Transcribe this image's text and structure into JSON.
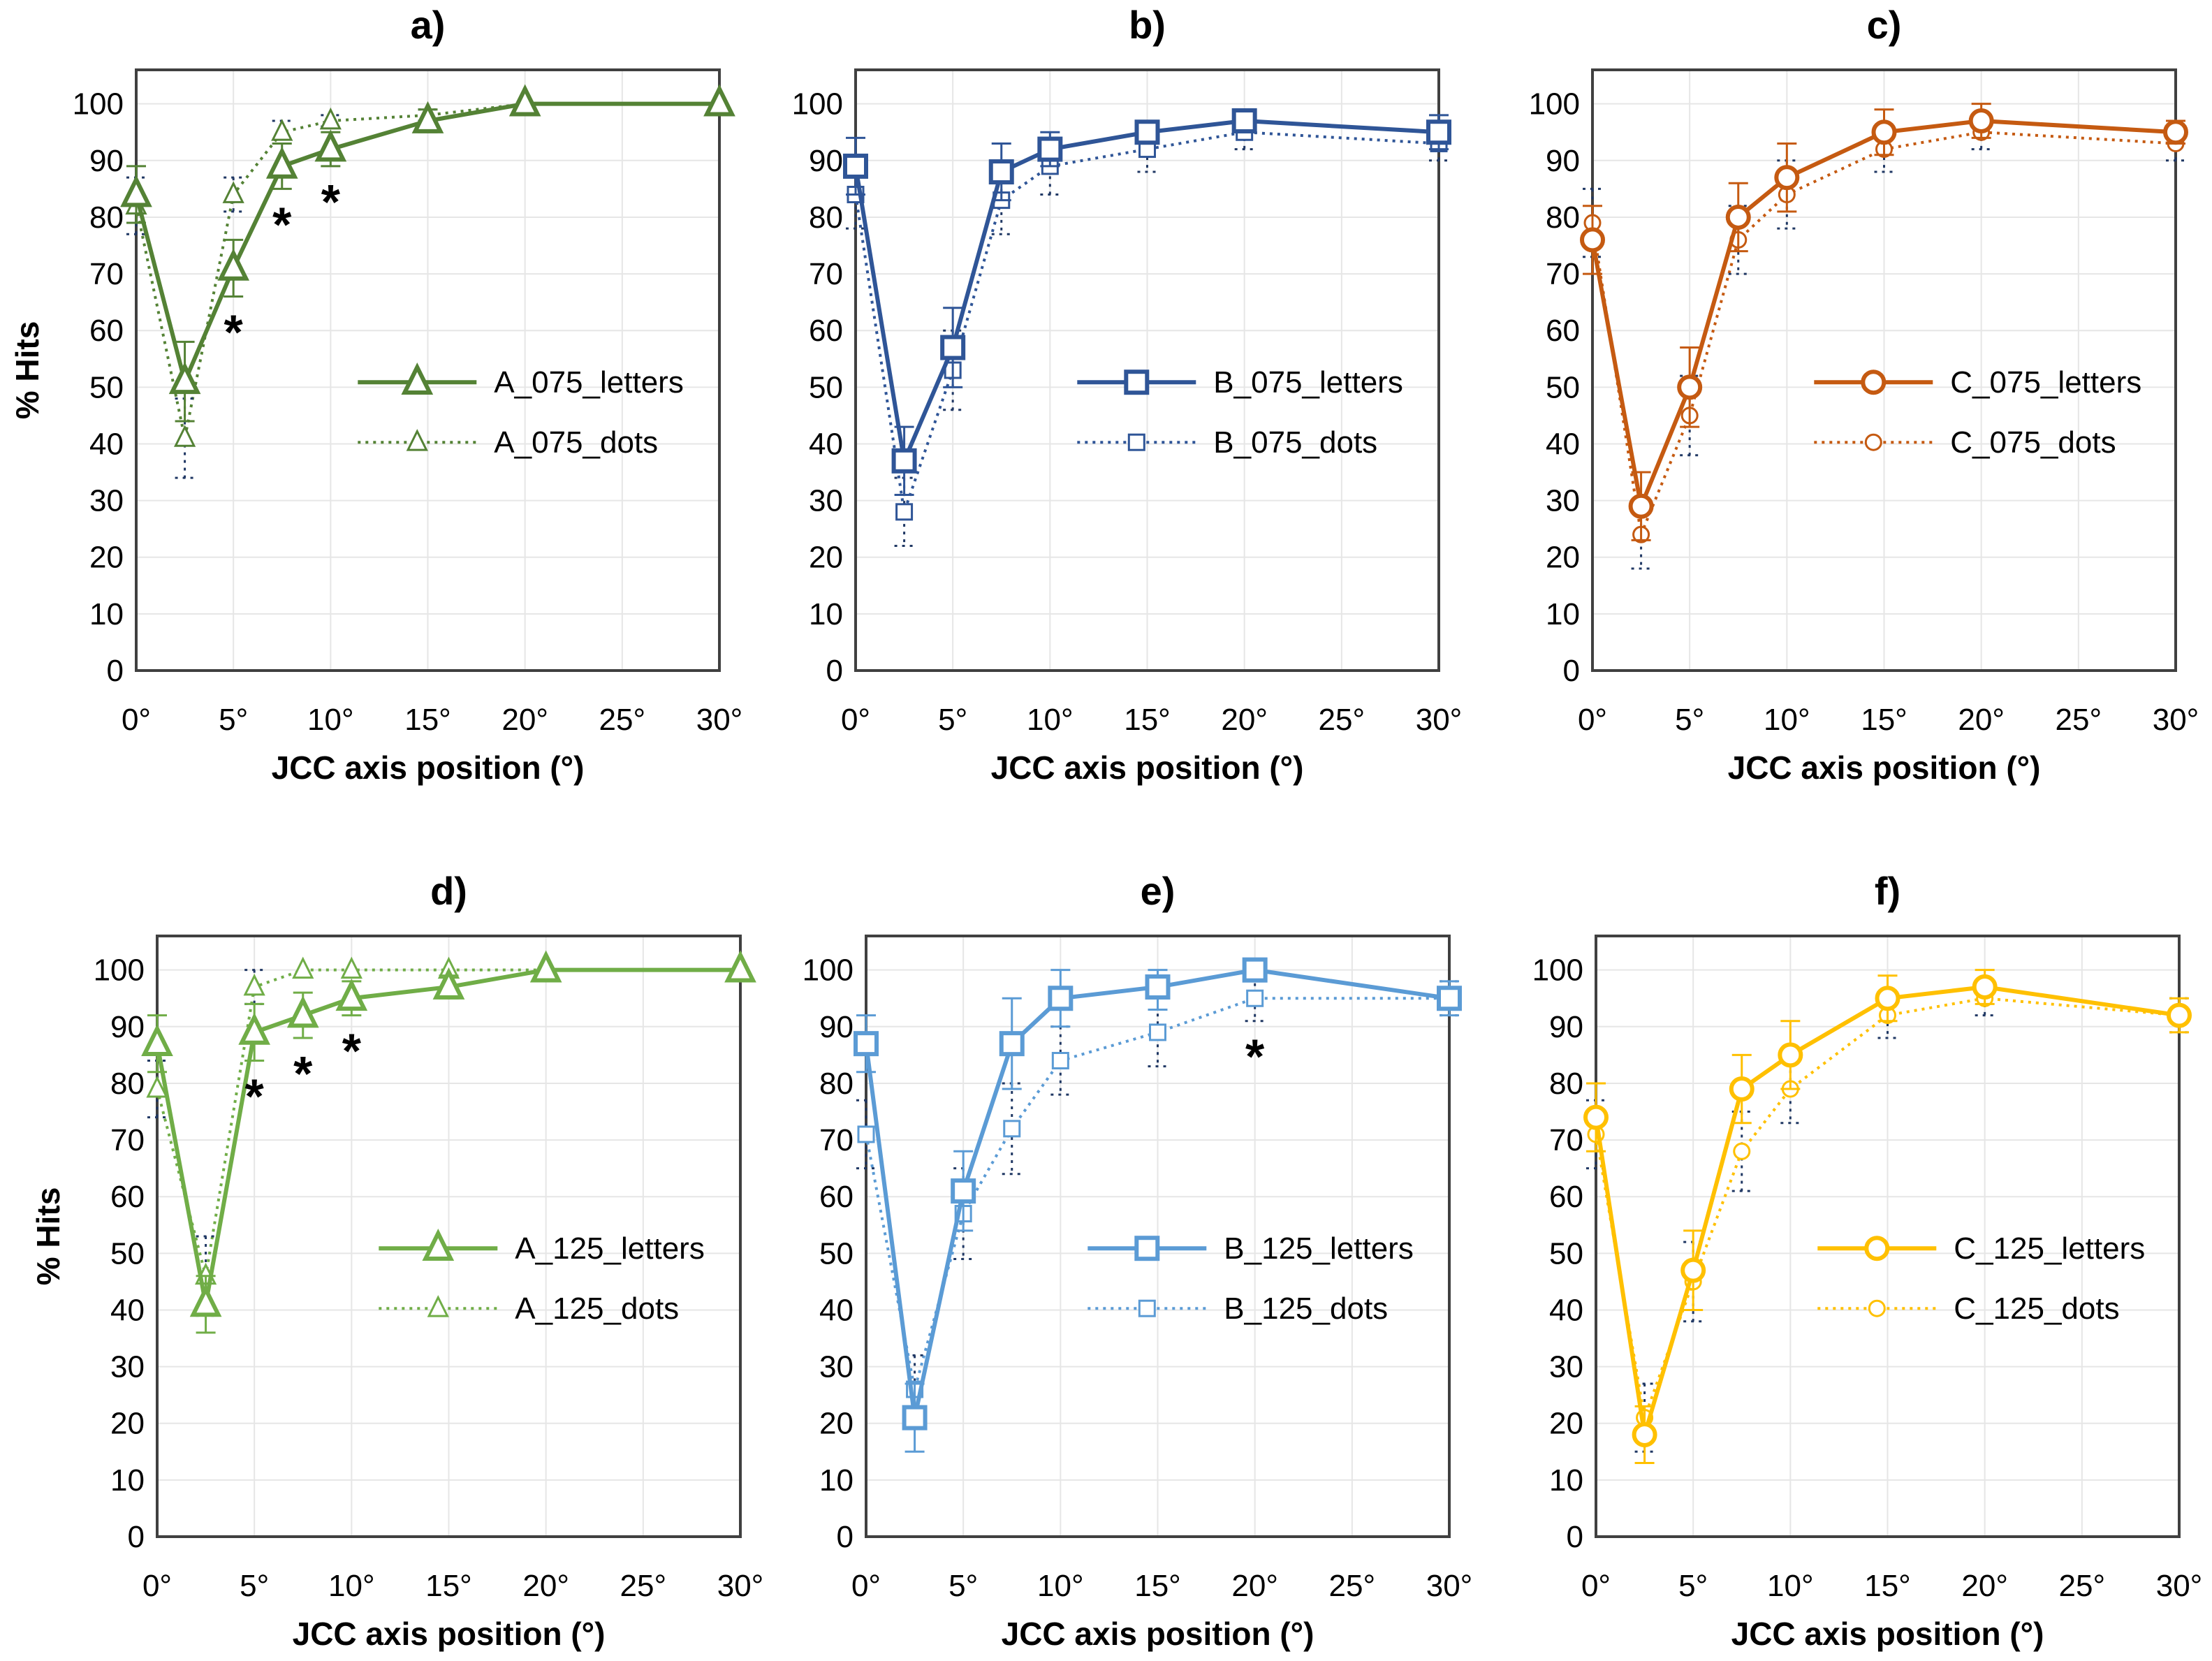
{
  "chart_data": [
    {
      "type": "line",
      "title": "a)",
      "xlabel": "JCC axis position (°)",
      "ylabel": "% Hits",
      "color": "#548235",
      "marker": "triangle",
      "x": [
        0,
        2.5,
        5,
        7.5,
        10,
        15,
        20,
        30
      ],
      "xticks": [
        "0°",
        "5°",
        "10°",
        "15°",
        "20°",
        "25°",
        "30°"
      ],
      "yticks": [
        0,
        10,
        20,
        30,
        40,
        50,
        60,
        70,
        80,
        90,
        100
      ],
      "ylim": [
        0,
        100
      ],
      "xlim": [
        0,
        30
      ],
      "grid": true,
      "legend": "center-right",
      "series": [
        {
          "name": "A_075_letters",
          "style": "solid",
          "values": [
            84,
            51,
            71,
            89,
            92,
            97,
            100,
            100
          ],
          "error": [
            5,
            7,
            5,
            4,
            3,
            2,
            0,
            0
          ]
        },
        {
          "name": "A_075_dots",
          "style": "dotted",
          "values": [
            82,
            41,
            84,
            95,
            97,
            98,
            100,
            100
          ],
          "error": [
            5,
            7,
            3,
            2,
            1,
            1,
            0,
            0
          ]
        }
      ],
      "annotations": [
        {
          "text": "*",
          "x": 5
        },
        {
          "text": "*",
          "x": 7.5
        },
        {
          "text": "*",
          "x": 10
        }
      ]
    },
    {
      "type": "line",
      "title": "b)",
      "xlabel": "JCC axis position (°)",
      "ylabel": "",
      "color": "#2f5597",
      "marker": "square",
      "x": [
        0,
        2.5,
        5,
        7.5,
        10,
        15,
        20,
        30
      ],
      "xticks": [
        "0°",
        "5°",
        "10°",
        "15°",
        "20°",
        "25°",
        "30°"
      ],
      "yticks": [
        0,
        10,
        20,
        30,
        40,
        50,
        60,
        70,
        80,
        90,
        100
      ],
      "ylim": [
        0,
        100
      ],
      "xlim": [
        0,
        30
      ],
      "grid": true,
      "legend": "center-right",
      "series": [
        {
          "name": "B_075_letters",
          "style": "solid",
          "values": [
            89,
            37,
            57,
            88,
            92,
            95,
            97,
            95
          ],
          "error": [
            5,
            6,
            7,
            5,
            3,
            2,
            2,
            3
          ]
        },
        {
          "name": "B_075_dots",
          "style": "dotted",
          "values": [
            84,
            28,
            53,
            83,
            89,
            92,
            95,
            93
          ],
          "error": [
            6,
            6,
            7,
            6,
            5,
            4,
            3,
            3
          ]
        }
      ],
      "annotations": []
    },
    {
      "type": "line",
      "title": "c)",
      "xlabel": "JCC axis position (°)",
      "ylabel": "",
      "color": "#c55a11",
      "marker": "circle",
      "x": [
        0,
        2.5,
        5,
        7.5,
        10,
        15,
        20,
        30
      ],
      "xticks": [
        "0°",
        "5°",
        "10°",
        "15°",
        "20°",
        "25°",
        "30°"
      ],
      "yticks": [
        0,
        10,
        20,
        30,
        40,
        50,
        60,
        70,
        80,
        90,
        100
      ],
      "ylim": [
        0,
        100
      ],
      "xlim": [
        0,
        30
      ],
      "grid": true,
      "legend": "center-right",
      "series": [
        {
          "name": "C_075_letters",
          "style": "solid",
          "values": [
            76,
            29,
            50,
            80,
            87,
            95,
            97,
            95
          ],
          "error": [
            6,
            6,
            7,
            6,
            6,
            4,
            3,
            2
          ]
        },
        {
          "name": "C_075_dots",
          "style": "dotted",
          "values": [
            79,
            24,
            45,
            76,
            84,
            92,
            95,
            93
          ],
          "error": [
            6,
            6,
            7,
            6,
            6,
            4,
            3,
            3
          ]
        }
      ],
      "annotations": []
    },
    {
      "type": "line",
      "title": "d)",
      "xlabel": "JCC axis position (°)",
      "ylabel": "% Hits",
      "color": "#70ad47",
      "marker": "triangle",
      "x": [
        0,
        2.5,
        5,
        7.5,
        10,
        15,
        20,
        30
      ],
      "xticks": [
        "0°",
        "5°",
        "10°",
        "15°",
        "20°",
        "25°",
        "30°"
      ],
      "yticks": [
        0,
        10,
        20,
        30,
        40,
        50,
        60,
        70,
        80,
        90,
        100
      ],
      "ylim": [
        0,
        100
      ],
      "xlim": [
        0,
        30
      ],
      "grid": true,
      "legend": "center-right",
      "series": [
        {
          "name": "A_125_letters",
          "style": "solid",
          "values": [
            87,
            41,
            89,
            92,
            95,
            97,
            100,
            100
          ],
          "error": [
            5,
            5,
            5,
            4,
            3,
            2,
            0,
            0
          ]
        },
        {
          "name": "A_125_dots",
          "style": "dotted",
          "values": [
            79,
            46,
            97,
            100,
            100,
            100,
            100,
            100
          ],
          "error": [
            5,
            7,
            3,
            0,
            0,
            0,
            0,
            0
          ]
        }
      ],
      "annotations": [
        {
          "text": "*",
          "x": 5
        },
        {
          "text": "*",
          "x": 7.5
        },
        {
          "text": "*",
          "x": 10
        }
      ]
    },
    {
      "type": "line",
      "title": "e)",
      "xlabel": "JCC axis position (°)",
      "ylabel": "",
      "color": "#5b9bd5",
      "marker": "square",
      "x": [
        0,
        2.5,
        5,
        7.5,
        10,
        15,
        20,
        30
      ],
      "xticks": [
        "0°",
        "5°",
        "10°",
        "15°",
        "20°",
        "25°",
        "30°"
      ],
      "yticks": [
        0,
        10,
        20,
        30,
        40,
        50,
        60,
        70,
        80,
        90,
        100
      ],
      "ylim": [
        0,
        100
      ],
      "xlim": [
        0,
        30
      ],
      "grid": true,
      "legend": "center-right",
      "series": [
        {
          "name": "B_125_letters",
          "style": "solid",
          "values": [
            87,
            21,
            61,
            87,
            95,
            97,
            100,
            95
          ],
          "error": [
            5,
            6,
            7,
            8,
            5,
            4,
            0,
            3
          ]
        },
        {
          "name": "B_125_dots",
          "style": "dotted",
          "values": [
            71,
            26,
            57,
            72,
            84,
            89,
            95,
            95
          ],
          "error": [
            6,
            6,
            8,
            8,
            6,
            6,
            4,
            3
          ]
        }
      ],
      "annotations": [
        {
          "text": "*",
          "x": 20
        }
      ]
    },
    {
      "type": "line",
      "title": "f)",
      "xlabel": "JCC axis position (°)",
      "ylabel": "",
      "color": "#ffc000",
      "marker": "circle",
      "x": [
        0,
        2.5,
        5,
        7.5,
        10,
        15,
        20,
        30
      ],
      "xticks": [
        "0°",
        "5°",
        "10°",
        "15°",
        "20°",
        "25°",
        "30°"
      ],
      "yticks": [
        0,
        10,
        20,
        30,
        40,
        50,
        60,
        70,
        80,
        90,
        100
      ],
      "ylim": [
        0,
        100
      ],
      "xlim": [
        0,
        30
      ],
      "grid": true,
      "legend": "center-right",
      "series": [
        {
          "name": "C_125_letters",
          "style": "solid",
          "values": [
            74,
            18,
            47,
            79,
            85,
            95,
            97,
            92
          ],
          "error": [
            6,
            5,
            7,
            6,
            6,
            4,
            3,
            3
          ]
        },
        {
          "name": "C_125_dots",
          "style": "dotted",
          "values": [
            71,
            21,
            45,
            68,
            79,
            92,
            95,
            92
          ],
          "error": [
            6,
            6,
            7,
            7,
            6,
            4,
            3,
            3
          ]
        }
      ],
      "annotations": []
    }
  ]
}
